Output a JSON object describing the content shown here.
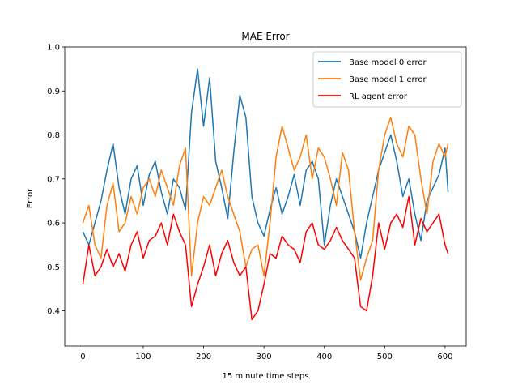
{
  "chart_data": {
    "type": "line",
    "title": "MAE Error",
    "xlabel": "15 minute time steps",
    "ylabel": "Error",
    "xlim": [
      -30,
      635
    ],
    "ylim": [
      0.32,
      1.0
    ],
    "xticks": [
      0,
      100,
      200,
      300,
      400,
      500,
      600
    ],
    "yticks": [
      0.4,
      0.5,
      0.6,
      0.7,
      0.8,
      0.9,
      1.0
    ],
    "grid": false,
    "legend_position": "top-right",
    "x": [
      0,
      10,
      20,
      30,
      40,
      50,
      60,
      70,
      80,
      90,
      100,
      110,
      120,
      130,
      140,
      150,
      160,
      170,
      180,
      190,
      200,
      210,
      220,
      230,
      240,
      250,
      260,
      270,
      280,
      290,
      300,
      310,
      320,
      330,
      340,
      350,
      360,
      370,
      380,
      390,
      400,
      410,
      420,
      430,
      440,
      450,
      460,
      470,
      480,
      490,
      500,
      510,
      520,
      530,
      540,
      550,
      560,
      570,
      580,
      590,
      600,
      605
    ],
    "series": [
      {
        "name": "Base model 0 error",
        "color": "#1f77b4",
        "values": [
          0.58,
          0.55,
          0.6,
          0.65,
          0.72,
          0.78,
          0.68,
          0.62,
          0.7,
          0.73,
          0.64,
          0.71,
          0.74,
          0.67,
          0.62,
          0.7,
          0.68,
          0.63,
          0.85,
          0.95,
          0.82,
          0.93,
          0.74,
          0.68,
          0.61,
          0.76,
          0.89,
          0.84,
          0.66,
          0.6,
          0.57,
          0.63,
          0.68,
          0.62,
          0.66,
          0.71,
          0.64,
          0.72,
          0.74,
          0.7,
          0.55,
          0.64,
          0.7,
          0.66,
          0.62,
          0.58,
          0.52,
          0.6,
          0.66,
          0.72,
          0.76,
          0.8,
          0.74,
          0.66,
          0.7,
          0.62,
          0.56,
          0.65,
          0.68,
          0.71,
          0.77,
          0.67
        ]
      },
      {
        "name": "Base model 1 error",
        "color": "#ff7f0e",
        "values": [
          0.6,
          0.64,
          0.55,
          0.52,
          0.64,
          0.69,
          0.58,
          0.6,
          0.66,
          0.62,
          0.68,
          0.7,
          0.66,
          0.72,
          0.68,
          0.64,
          0.73,
          0.77,
          0.48,
          0.6,
          0.66,
          0.64,
          0.68,
          0.72,
          0.66,
          0.62,
          0.58,
          0.5,
          0.54,
          0.55,
          0.48,
          0.6,
          0.75,
          0.82,
          0.77,
          0.72,
          0.75,
          0.8,
          0.7,
          0.77,
          0.75,
          0.7,
          0.64,
          0.76,
          0.72,
          0.58,
          0.47,
          0.52,
          0.56,
          0.72,
          0.8,
          0.84,
          0.78,
          0.75,
          0.82,
          0.8,
          0.7,
          0.62,
          0.74,
          0.78,
          0.75,
          0.78
        ]
      },
      {
        "name": "RL agent error",
        "color": "#ff0000",
        "values": [
          0.46,
          0.55,
          0.48,
          0.5,
          0.54,
          0.5,
          0.53,
          0.49,
          0.55,
          0.58,
          0.52,
          0.56,
          0.57,
          0.6,
          0.55,
          0.62,
          0.58,
          0.55,
          0.41,
          0.46,
          0.5,
          0.55,
          0.48,
          0.53,
          0.56,
          0.51,
          0.48,
          0.5,
          0.38,
          0.4,
          0.46,
          0.53,
          0.52,
          0.57,
          0.55,
          0.54,
          0.51,
          0.58,
          0.6,
          0.55,
          0.54,
          0.56,
          0.59,
          0.56,
          0.54,
          0.52,
          0.41,
          0.4,
          0.48,
          0.6,
          0.54,
          0.6,
          0.62,
          0.59,
          0.66,
          0.55,
          0.61,
          0.58,
          0.6,
          0.62,
          0.55,
          0.53
        ]
      }
    ]
  }
}
